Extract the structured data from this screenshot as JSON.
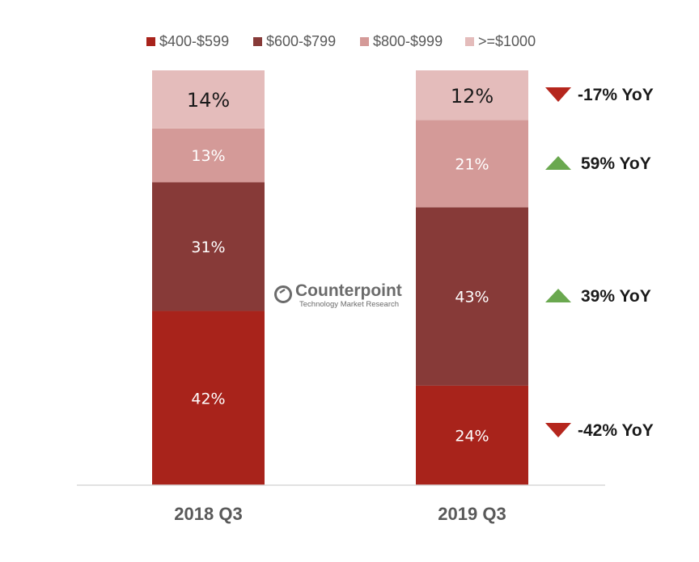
{
  "chart_data": {
    "type": "bar",
    "stacked": true,
    "percent_stacked": true,
    "categories": [
      "2018 Q3",
      "2019 Q3"
    ],
    "series": [
      {
        "name": "$400-$599",
        "values": [
          42,
          24
        ],
        "color": "#a8231b",
        "label_color": "#ffffff"
      },
      {
        "name": "$600-$799",
        "values": [
          31,
          43
        ],
        "color": "#873a38",
        "label_color": "#ffffff"
      },
      {
        "name": "$800-$999",
        "values": [
          13,
          21
        ],
        "color": "#d49a98",
        "label_color": "#ffffff"
      },
      {
        "name": ">=$1000",
        "values": [
          14,
          12
        ],
        "color": "#e4bcbb",
        "label_color": "#1a1a1a"
      }
    ],
    "data_labels": [
      [
        "42%",
        "31%",
        "13%",
        "14%"
      ],
      [
        "24%",
        "43%",
        "21%",
        "12%"
      ]
    ],
    "yoy_annotations": [
      {
        "series": ">=$1000",
        "text": "-17% YoY",
        "direction": "down",
        "color": "#b5261d"
      },
      {
        "series": "$800-$999",
        "text": "59% YoY",
        "direction": "up",
        "color": "#6aa84f"
      },
      {
        "series": "$600-$799",
        "text": "39% YoY",
        "direction": "up",
        "color": "#6aa84f"
      },
      {
        "series": "$400-$599",
        "text": "-42% YoY",
        "direction": "down",
        "color": "#b5261d"
      }
    ],
    "legend_position": "top",
    "ylim": [
      0,
      100
    ],
    "grid": false
  },
  "watermark": {
    "name": "Counterpoint",
    "tagline": "Technology Market Research"
  }
}
